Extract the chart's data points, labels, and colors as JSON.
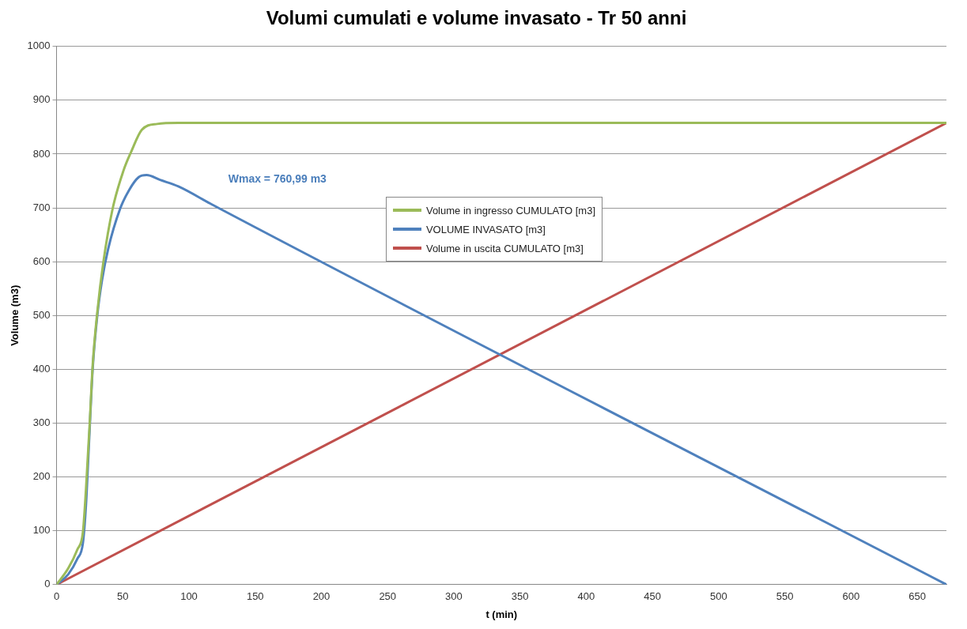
{
  "chart_data": {
    "type": "line",
    "title": "Volumi cumulati e volume invasato - Tr 50 anni",
    "xlabel": "t (min)",
    "ylabel": "Volume (m3)",
    "xlim": [
      0,
      672
    ],
    "xticks": [
      0,
      50,
      100,
      150,
      200,
      250,
      300,
      350,
      400,
      450,
      500,
      550,
      600,
      650
    ],
    "ylim": [
      0,
      1000
    ],
    "yticks": [
      0,
      100,
      200,
      300,
      400,
      500,
      600,
      700,
      800,
      900,
      1000
    ],
    "grid": "y",
    "legend": "top",
    "marker": "none",
    "line_style": "solid",
    "annotations": [
      "Wmax = 760,99 m3"
    ],
    "series": [
      {
        "name": "Volume in ingresso CUMULATO [m3]",
        "color": "#9bbb59",
        "x": [
          0,
          8.8,
          15.7,
          19.9,
          22.2,
          25,
          27.3,
          30.8,
          35.4,
          42.4,
          50.5,
          56.3,
          64.4,
          75.9,
          92,
          672
        ],
        "values": [
          0,
          30,
          65,
          97,
          176,
          298,
          408,
          507,
          600,
          699,
          769,
          804,
          845,
          856,
          858,
          858
        ]
      },
      {
        "name": "VOLUME INVASATO [m3]",
        "color": "#4f81bd",
        "x": [
          0,
          8.8,
          15.7,
          19.9,
          22.2,
          24.5,
          27.3,
          30.8,
          34.3,
          38.9,
          48.1,
          55,
          62,
          68,
          78.2,
          92,
          117.6,
          672
        ],
        "values": [
          0,
          19,
          48,
          77,
          147,
          263,
          402,
          501,
          565,
          623,
          699,
          734,
          757,
          761,
          752,
          740,
          706,
          0
        ]
      },
      {
        "name": "Volume in uscita CUMULATO [m3]",
        "color": "#c0504d",
        "x": [
          0,
          672
        ],
        "values": [
          0,
          858
        ]
      }
    ]
  }
}
